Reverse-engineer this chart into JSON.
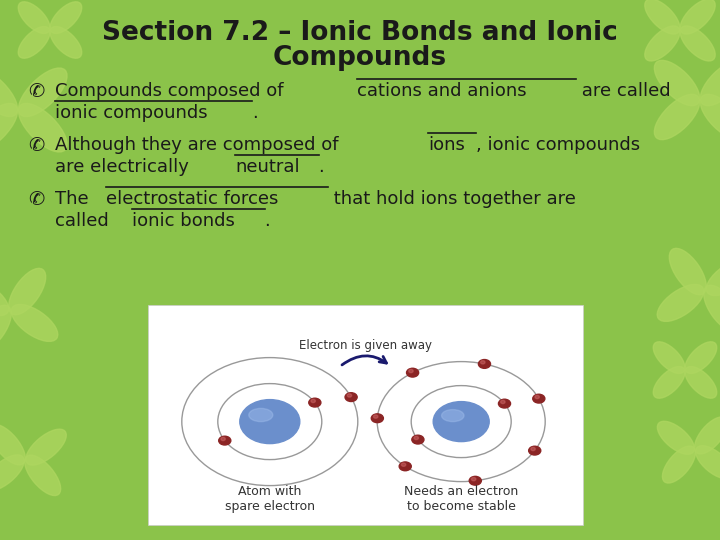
{
  "title_line1": "Section 7.2 – Ionic Bonds and Ionic",
  "title_line2": "Compounds",
  "bg_color": "#8bc34a",
  "butterfly_color": "#aed660",
  "title_color": "#1a1a1a",
  "text_color": "#1a1a1a",
  "bullet_symbol": "✆",
  "panel_bg": "#ffffff",
  "nucleus_color_left": "#6b8fc9",
  "nucleus_color_right": "#6b8fc9",
  "electron_color": "#8b2020",
  "orbit_color": "#888888",
  "arrow_color": "#1a1a6e",
  "arrow_label": "Electron is given away",
  "atom1_label": "Atom with\nspare electron",
  "atom2_label": "Needs an electron\nto become stable",
  "bullet1_seg1": "Compounds composed of ",
  "bullet1_seg2": "cations and anions",
  "bullet1_seg3": " are called",
  "bullet1_seg4": "ionic compounds",
  "bullet1_seg5": ".",
  "bullet2_seg1": "Although they are composed of ",
  "bullet2_seg2": "ions",
  "bullet2_seg3": ", ionic compounds",
  "bullet2_seg4": "are electrically ",
  "bullet2_seg5": "neutral",
  "bullet2_seg6": ".",
  "bullet3_seg1": "The ",
  "bullet3_seg2": "electrostatic forces",
  "bullet3_seg3": " that hold ions together are",
  "bullet3_seg4": "called ",
  "bullet3_seg5": "ionic bonds",
  "bullet3_seg6": ".",
  "font_size_title": 19,
  "font_size_bullet": 13,
  "font_size_atom_label": 9,
  "font_size_arrow_label": 8.5
}
